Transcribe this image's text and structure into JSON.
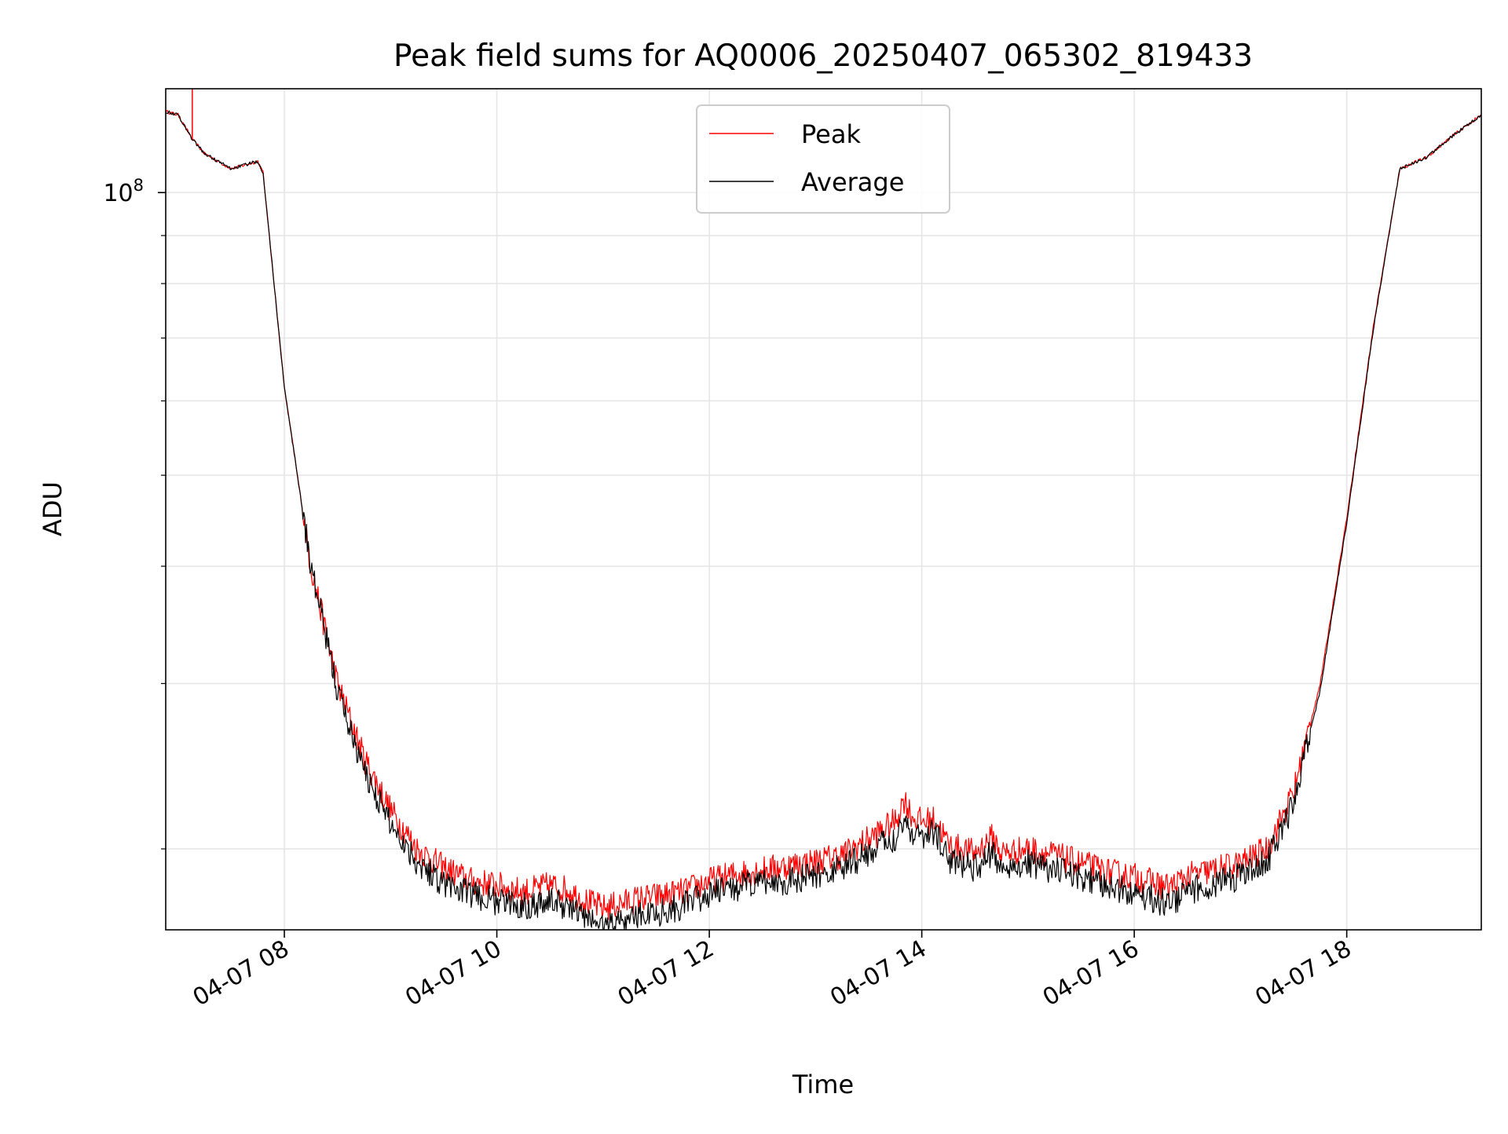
{
  "chart_data": {
    "type": "line",
    "title": "Peak field sums for AQ0006_20250407_065302_819433",
    "xlabel": "Time",
    "ylabel": "ADU",
    "y_scale": "log",
    "ylim": [
      16400000,
      129000000
    ],
    "xlim": [
      "2025-04-07 06:53",
      "2025-04-07 19:16"
    ],
    "grid": true,
    "legend_position": "top-center",
    "x_ticks": [
      {
        "value": "2025-04-07 08:00",
        "label": "04-07 08"
      },
      {
        "value": "2025-04-07 10:00",
        "label": "04-07 10"
      },
      {
        "value": "2025-04-07 12:00",
        "label": "04-07 12"
      },
      {
        "value": "2025-04-07 14:00",
        "label": "04-07 14"
      },
      {
        "value": "2025-04-07 16:00",
        "label": "04-07 16"
      },
      {
        "value": "2025-04-07 18:00",
        "label": "04-07 18"
      }
    ],
    "y_ticks": [
      {
        "value": 100000000,
        "label_base": "10",
        "label_exp": "8"
      }
    ],
    "y_minor_ticks": [
      20000000,
      30000000,
      40000000,
      50000000,
      60000000,
      70000000,
      80000000,
      90000000
    ],
    "x": [
      "06:53",
      "07:00",
      "07:08",
      "07:15",
      "07:30",
      "07:45",
      "07:48",
      "08:00",
      "08:15",
      "08:30",
      "08:45",
      "09:00",
      "09:15",
      "09:30",
      "09:45",
      "10:00",
      "10:15",
      "10:30",
      "10:40",
      "10:50",
      "11:00",
      "11:10",
      "11:20",
      "11:30",
      "11:45",
      "12:00",
      "12:15",
      "12:30",
      "12:45",
      "13:00",
      "13:15",
      "13:30",
      "13:45",
      "13:50",
      "13:55",
      "14:00",
      "14:08",
      "14:15",
      "14:30",
      "14:40",
      "14:45",
      "15:00",
      "15:15",
      "15:30",
      "15:45",
      "16:00",
      "16:15",
      "16:20",
      "16:30",
      "16:45",
      "17:00",
      "17:15",
      "17:30",
      "17:45",
      "18:00",
      "18:15",
      "18:30",
      "18:45",
      "19:00",
      "19:16"
    ],
    "series": [
      {
        "name": "Peak",
        "color": "#ff0000",
        "values": [
          122000000,
          121000000,
          114000000,
          110000000,
          106000000,
          108000000,
          105000000,
          62000000,
          40000000,
          30000000,
          25000000,
          22000000,
          20000000,
          19100000,
          18500000,
          18300000,
          18000000,
          18300000,
          18100000,
          17600000,
          17300000,
          17500000,
          17700000,
          17800000,
          18000000,
          18500000,
          18800000,
          19000000,
          19200000,
          19400000,
          19700000,
          20500000,
          21400000,
          22600000,
          21600000,
          21400000,
          21500000,
          20200000,
          19800000,
          20600000,
          19800000,
          20000000,
          19700000,
          19300000,
          18900000,
          18700000,
          18300000,
          18200000,
          18700000,
          19000000,
          19300000,
          20000000,
          23000000,
          30000000,
          45000000,
          72000000,
          106000000,
          109000000,
          115000000,
          121000000
        ]
      },
      {
        "name": "Average",
        "color": "#000000",
        "values": [
          122000000,
          121000000,
          114000000,
          110000000,
          106000000,
          108000000,
          105000000,
          62000000,
          40000000,
          29500000,
          24200000,
          21300000,
          19400000,
          18400000,
          17900000,
          17600000,
          17400000,
          17600000,
          17400000,
          16900000,
          16600000,
          16800000,
          17000000,
          17100000,
          17400000,
          17900000,
          18200000,
          18400000,
          18500000,
          18700000,
          19100000,
          19800000,
          20600000,
          21500000,
          20800000,
          20700000,
          20800000,
          19500000,
          19100000,
          19800000,
          19100000,
          19300000,
          19000000,
          18600000,
          18200000,
          18000000,
          17600000,
          17500000,
          18000000,
          18400000,
          18700000,
          19400000,
          22400000,
          29500000,
          44500000,
          71500000,
          106000000,
          109000000,
          115000000,
          121000000
        ]
      }
    ],
    "annotations": [
      {
        "series": "Peak",
        "type": "spike",
        "x": "07:08",
        "to_top_of_axes": true
      }
    ]
  }
}
